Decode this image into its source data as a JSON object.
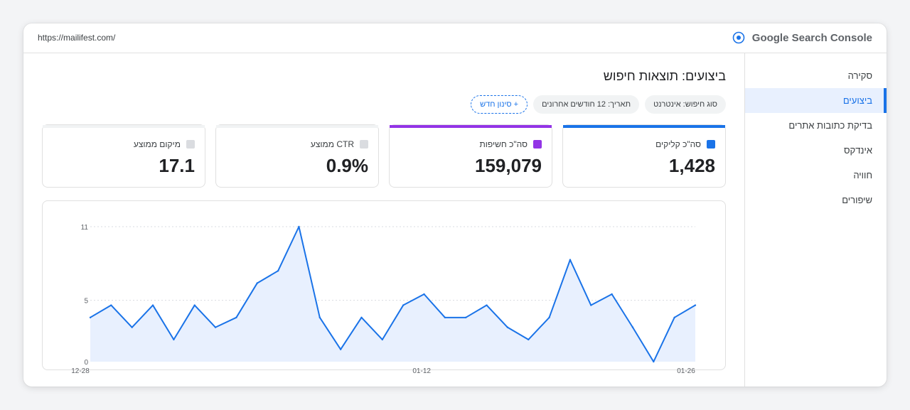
{
  "window": {
    "url": "https://mailifest.com/",
    "brand": "Google Search Console"
  },
  "sidebar": {
    "items": [
      {
        "label": "סקירה",
        "active": false
      },
      {
        "label": "ביצועים",
        "active": true
      },
      {
        "label": "בדיקת כתובות אתרים",
        "active": false
      },
      {
        "label": "אינדקס",
        "active": false
      },
      {
        "label": "חוויה",
        "active": false
      },
      {
        "label": "שיפורים",
        "active": false
      }
    ]
  },
  "main": {
    "title": "ביצועים: תוצאות חיפוש",
    "filters": {
      "search_type": "סוג חיפוש: אינטרנט",
      "date": "תאריך: 12 חודשים אחרונים",
      "add": "+ סינון חדש"
    },
    "metrics": [
      {
        "label": "סה\"כ קליקים",
        "value": "1,428",
        "color": "#1a73e8",
        "active": true
      },
      {
        "label": "סה\"כ חשיפות",
        "value": "159,079",
        "color": "#9334e6",
        "active": true
      },
      {
        "label": "CTR ממוצע",
        "value": "0.9%",
        "color": "#dadce0",
        "active": false
      },
      {
        "label": "מיקום ממוצע",
        "value": "17.1",
        "color": "#dadce0",
        "active": false
      }
    ]
  },
  "chart_data": {
    "type": "area",
    "series": [
      {
        "values": [
          3.6,
          4.6,
          2.8,
          4.6,
          1.8,
          4.6,
          2.8,
          3.6,
          6.4,
          7.4,
          11,
          3.6,
          1.0,
          3.6,
          1.8,
          4.6,
          5.5,
          3.6,
          3.6,
          4.6,
          2.8,
          1.8,
          3.6,
          8.3,
          4.6,
          5.5,
          2.8,
          0,
          3.6,
          4.6
        ]
      }
    ],
    "x_ticks": [
      "12-28",
      "01-12",
      "01-26"
    ],
    "y_ticks": [
      "0",
      "5",
      "11"
    ],
    "ylim": [
      0,
      11
    ],
    "grid": true,
    "line_color": "#1a73e8",
    "fill_color": "#e8f0fe"
  }
}
